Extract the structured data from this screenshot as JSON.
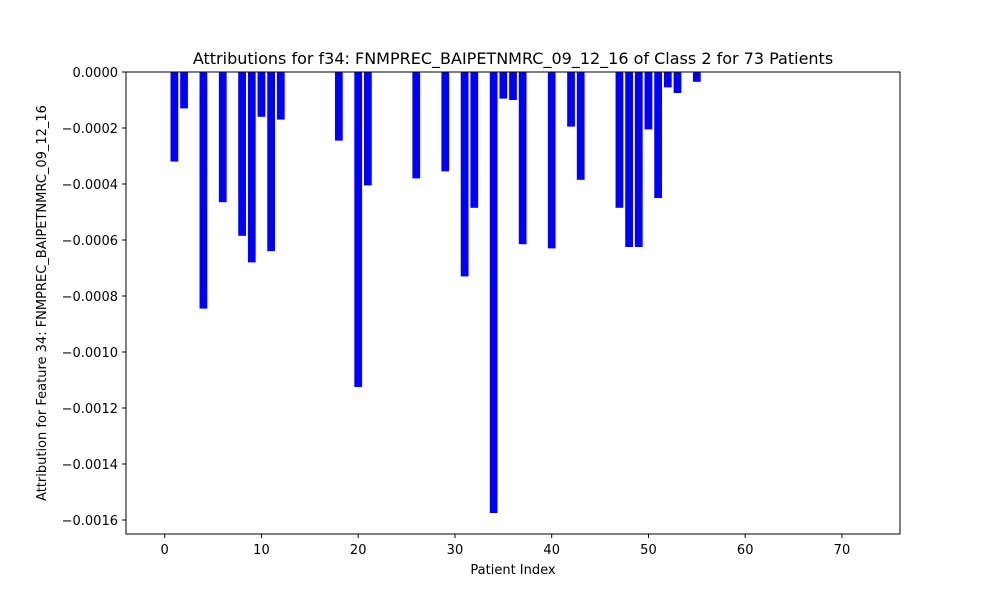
{
  "chart_data": {
    "type": "bar",
    "title": "Attributions for f34: FNMPREC_BAIPETNMRC_09_12_16 of Class 2 for 73 Patients",
    "xlabel": "Patient Index",
    "ylabel": "Attribution for Feature 34: FNMPREC_BAIPETNMRC_09_12_16",
    "xlim": [
      -4,
      76
    ],
    "ylim": [
      -0.00165,
      0.0
    ],
    "xticks": [
      0,
      10,
      20,
      30,
      40,
      50,
      60,
      70
    ],
    "yticks": [
      0.0,
      -0.0002,
      -0.0004,
      -0.0006,
      -0.0008,
      -0.001,
      -0.0012,
      -0.0014,
      -0.0016
    ],
    "ytick_labels": [
      "0.0000",
      "−0.0002",
      "−0.0004",
      "−0.0006",
      "−0.0008",
      "−0.0010",
      "−0.0012",
      "−0.0014",
      "−0.0016"
    ],
    "bar_color": "#0000ff",
    "grid": false,
    "x": [
      1,
      2,
      4,
      6,
      8,
      9,
      10,
      11,
      12,
      18,
      20,
      21,
      26,
      29,
      31,
      32,
      34,
      35,
      36,
      37,
      40,
      42,
      43,
      47,
      48,
      49,
      50,
      51,
      52,
      53,
      55
    ],
    "values": [
      -0.00032,
      -0.00013,
      -0.000845,
      -0.000465,
      -0.000585,
      -0.00068,
      -0.00016,
      -0.00064,
      -0.00017,
      -0.000245,
      -0.001125,
      -0.000405,
      -0.00038,
      -0.000355,
      -0.00073,
      -0.000485,
      -0.001575,
      -9.5e-05,
      -0.0001,
      -0.000615,
      -0.00063,
      -0.000195,
      -0.000385,
      -0.000485,
      -0.000625,
      -0.000625,
      -0.000205,
      -0.00045,
      -5.5e-05,
      -7.5e-05,
      -3.5e-05
    ]
  }
}
